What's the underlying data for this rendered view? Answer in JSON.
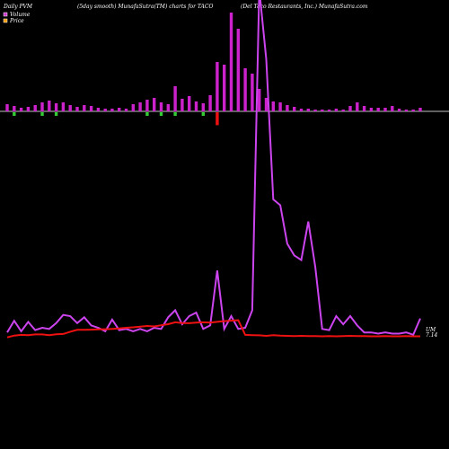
{
  "header": {
    "left": "Daily PVM",
    "middle": "(5day smooth) MunafaSutra(TM) charts for TACO",
    "right": "(Del Taco  Restaurants, Inc.) MunafaSutra.com"
  },
  "legend": {
    "volume_label": "Volume",
    "price_label": "Price",
    "volume_color": "#cc33cc",
    "price_color": "#ff3300"
  },
  "end_label": {
    "line1": "UM",
    "line2": "7.14"
  },
  "colors": {
    "background": "#000000",
    "volume_line": "#cc44ee",
    "price_line": "#ee1111",
    "bar_up": "#cc22cc",
    "bar_down_green": "#33cc33",
    "bar_down_red": "#ee1111",
    "baseline": "#ffffff"
  },
  "chart_data": {
    "type": "line",
    "title": "",
    "x_count": 60,
    "series": [
      {
        "name": "Volume",
        "values": [
          6,
          16,
          7,
          15,
          8,
          10,
          9,
          14,
          21,
          20,
          14,
          19,
          12,
          10,
          7,
          17,
          8,
          9,
          7,
          9,
          7,
          10,
          9,
          19,
          25,
          13,
          20,
          23,
          9,
          12,
          59,
          9,
          20,
          9,
          10,
          25,
          300,
          240,
          120,
          115,
          82,
          72,
          68,
          101,
          62,
          9,
          8,
          20,
          13,
          20,
          12,
          6,
          6,
          5,
          6,
          5,
          5,
          6,
          4,
          18
        ]
      },
      {
        "name": "Price",
        "values": [
          6.6,
          7.4,
          7.7,
          7.6,
          7.9,
          7.9,
          7.6,
          8.0,
          8.1,
          9.1,
          9.9,
          9.9,
          10.0,
          10.1,
          10.2,
          10.3,
          10.5,
          10.8,
          11.0,
          11.3,
          11.6,
          11.4,
          11.9,
          12.4,
          13.2,
          12.9,
          12.8,
          13.1,
          13.2,
          13.1,
          13.4,
          13.7,
          13.9,
          14.1,
          7.7,
          7.6,
          7.5,
          7.3,
          7.6,
          7.4,
          7.3,
          7.2,
          7.3,
          7.2,
          7.2,
          7.1,
          7.2,
          7.1,
          7.2,
          7.3,
          7.2,
          7.2,
          7.1,
          7.1,
          7.2,
          7.1,
          7.1,
          7.2,
          7.1,
          7.1
        ]
      }
    ],
    "bars": {
      "values": [
        8,
        6,
        4,
        5,
        7,
        10,
        12,
        9,
        10,
        7,
        5,
        7,
        6,
        4,
        3,
        3,
        4,
        3,
        8,
        10,
        13,
        15,
        10,
        8,
        28,
        14,
        17,
        11,
        9,
        18,
        55,
        52,
        110,
        92,
        48,
        42,
        25,
        15,
        11,
        10,
        7,
        5,
        3,
        3,
        2,
        2,
        2,
        3,
        2,
        6,
        10,
        6,
        4,
        4,
        4,
        6,
        3,
        2,
        2,
        4
      ],
      "direction": [
        "up",
        "up",
        "up",
        "up",
        "up",
        "up",
        "down",
        "up",
        "up",
        "up",
        "up",
        "up",
        "up",
        "up",
        "up",
        "up",
        "up",
        "up",
        "up",
        "up",
        "up",
        "up",
        "up",
        "up",
        "up",
        "up",
        "up",
        "up",
        "up",
        "up",
        "up",
        "up",
        "up",
        "up",
        "up",
        "up",
        "up",
        "up",
        "up",
        "up",
        "up",
        "up",
        "up",
        "up",
        "up",
        "up",
        "up",
        "up",
        "up",
        "up",
        "up",
        "up",
        "up",
        "up",
        "up",
        "up",
        "up",
        "up",
        "up",
        "up"
      ],
      "down_values": [
        0,
        5,
        0,
        0,
        0,
        5,
        0,
        5,
        0,
        0,
        0,
        0,
        0,
        0,
        0,
        0,
        0,
        0,
        0,
        0,
        5,
        0,
        5,
        0,
        5,
        0,
        0,
        0,
        5,
        0,
        18,
        0,
        0,
        0,
        0,
        0,
        0,
        0,
        0,
        0,
        0,
        0,
        0,
        0,
        0,
        0,
        0,
        0,
        0,
        0,
        0,
        0,
        0,
        0,
        0,
        0,
        0,
        0,
        0,
        0
      ],
      "down_color_key": [
        "g",
        "g",
        "g",
        "g",
        "g",
        "g",
        "g",
        "g",
        "g",
        "g",
        "g",
        "g",
        "g",
        "g",
        "g",
        "g",
        "g",
        "g",
        "g",
        "g",
        "g",
        "g",
        "g",
        "g",
        "g",
        "g",
        "g",
        "g",
        "g",
        "g",
        "r",
        "g",
        "g",
        "g",
        "g",
        "g",
        "g",
        "g",
        "g",
        "g",
        "g",
        "g",
        "g",
        "g",
        "g",
        "g",
        "g",
        "g",
        "g",
        "g",
        "g",
        "g",
        "g",
        "g",
        "g",
        "g",
        "g",
        "g",
        "g",
        "g"
      ]
    },
    "grid": false,
    "legend_position": "top-left"
  }
}
